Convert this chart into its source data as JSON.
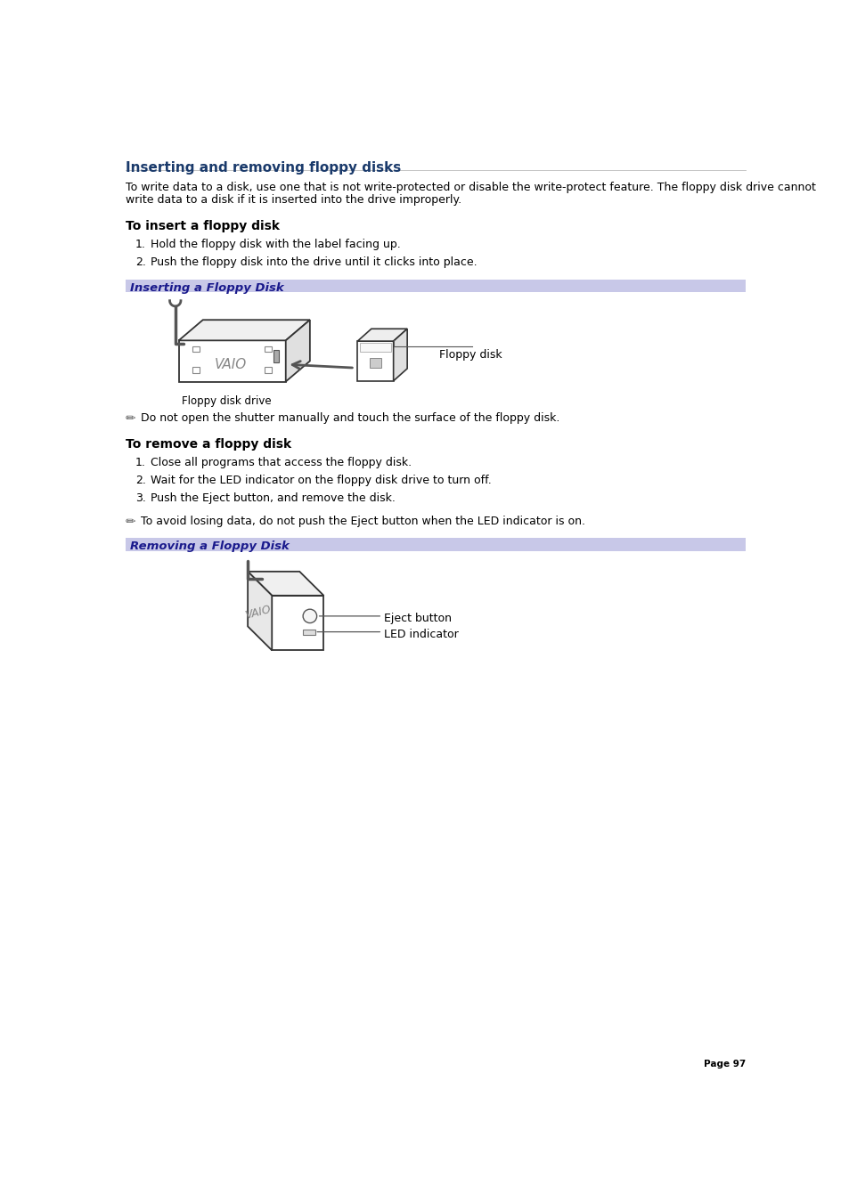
{
  "title": "Inserting and removing floppy disks",
  "title_color": "#1a3a6b",
  "bg_color": "#ffffff",
  "section_bg_color": "#c8c8e8",
  "section_text_color": "#1a1a8c",
  "body_text_color": "#000000",
  "intro_text_line1": "To write data to a disk, use one that is not write-protected or disable the write-protect feature. The floppy disk drive cannot",
  "intro_text_line2": "write data to a disk if it is inserted into the drive improperly.",
  "insert_heading": "To insert a floppy disk",
  "insert_steps": [
    "Hold the floppy disk with the label facing up.",
    "Push the floppy disk into the drive until it clicks into place."
  ],
  "insert_caption": "Inserting a Floppy Disk",
  "insert_note": "Do not open the shutter manually and touch the surface of the floppy disk.",
  "remove_heading": "To remove a floppy disk",
  "remove_steps": [
    "Close all programs that access the floppy disk.",
    "Wait for the LED indicator on the floppy disk drive to turn off.",
    "Push the Eject button, and remove the disk."
  ],
  "remove_caption": "Removing a Floppy Disk",
  "remove_note": "To avoid losing data, do not push the Eject button when the LED indicator is on.",
  "page_number": "Page 97",
  "label_floppy_disk": "Floppy disk",
  "label_floppy_disk_drive": "Floppy disk drive",
  "label_eject_button": "Eject button",
  "label_led_indicator": "LED indicator"
}
